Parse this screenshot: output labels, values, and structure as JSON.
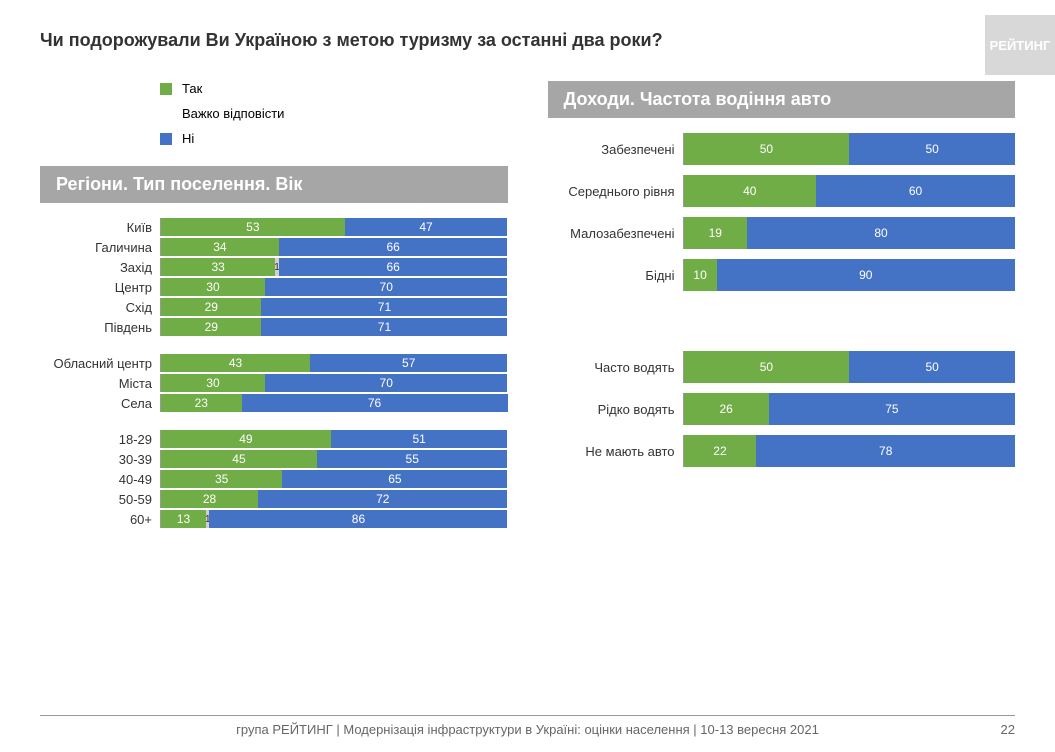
{
  "title": "Чи подорожували Ви Україною з метою туризму за останні два роки?",
  "watermark": "РЕЙТИНГ",
  "colors": {
    "yes": "#70ad47",
    "hard": "#d0d0d0",
    "no": "#4472c4"
  },
  "legend": [
    {
      "label": "Так",
      "color": "#70ad47"
    },
    {
      "label": "Важко відповісти",
      "color": null
    },
    {
      "label": "Ні",
      "color": "#4472c4"
    }
  ],
  "left": {
    "header": "Регіони. Тип поселення. Вік",
    "groups": [
      {
        "rows": [
          {
            "label": "Київ",
            "segs": [
              {
                "v": 53,
                "c": "#70ad47"
              },
              {
                "v": 47,
                "c": "#4472c4"
              }
            ]
          },
          {
            "label": "Галичина",
            "segs": [
              {
                "v": 34,
                "c": "#70ad47"
              },
              {
                "v": 66,
                "c": "#4472c4"
              }
            ]
          },
          {
            "label": "Захід",
            "segs": [
              {
                "v": 33,
                "c": "#70ad47"
              },
              {
                "v": 1,
                "c": "#d0d0d0"
              },
              {
                "v": 66,
                "c": "#4472c4"
              }
            ]
          },
          {
            "label": "Центр",
            "segs": [
              {
                "v": 30,
                "c": "#70ad47"
              },
              {
                "v": 70,
                "c": "#4472c4"
              }
            ]
          },
          {
            "label": "Схід",
            "segs": [
              {
                "v": 29,
                "c": "#70ad47"
              },
              {
                "v": 71,
                "c": "#4472c4"
              }
            ]
          },
          {
            "label": "Південь",
            "segs": [
              {
                "v": 29,
                "c": "#70ad47"
              },
              {
                "v": 71,
                "c": "#4472c4"
              }
            ]
          }
        ]
      },
      {
        "rows": [
          {
            "label": "Обласний центр",
            "segs": [
              {
                "v": 43,
                "c": "#70ad47"
              },
              {
                "v": 57,
                "c": "#4472c4"
              }
            ]
          },
          {
            "label": "Міста",
            "segs": [
              {
                "v": 30,
                "c": "#70ad47"
              },
              {
                "v": 70,
                "c": "#4472c4"
              }
            ]
          },
          {
            "label": "Села",
            "segs": [
              {
                "v": 23,
                "c": "#70ad47"
              },
              {
                "v": 76,
                "c": "#4472c4"
              }
            ]
          }
        ]
      },
      {
        "rows": [
          {
            "label": "18-29",
            "segs": [
              {
                "v": 49,
                "c": "#70ad47"
              },
              {
                "v": 51,
                "c": "#4472c4"
              }
            ]
          },
          {
            "label": "30-39",
            "segs": [
              {
                "v": 45,
                "c": "#70ad47"
              },
              {
                "v": 55,
                "c": "#4472c4"
              }
            ]
          },
          {
            "label": "40-49",
            "segs": [
              {
                "v": 35,
                "c": "#70ad47"
              },
              {
                "v": 65,
                "c": "#4472c4"
              }
            ]
          },
          {
            "label": "50-59",
            "segs": [
              {
                "v": 28,
                "c": "#70ad47"
              },
              {
                "v": 72,
                "c": "#4472c4"
              }
            ]
          },
          {
            "label": "60+",
            "segs": [
              {
                "v": 13,
                "c": "#70ad47"
              },
              {
                "v": 1,
                "c": "#d0d0d0"
              },
              {
                "v": 86,
                "c": "#4472c4"
              }
            ]
          }
        ]
      }
    ]
  },
  "right": {
    "header": "Доходи. Частота водіння авто",
    "groups": [
      {
        "rows": [
          {
            "label": "Забезпечені",
            "segs": [
              {
                "v": 50,
                "c": "#70ad47"
              },
              {
                "v": 50,
                "c": "#4472c4"
              }
            ]
          },
          {
            "label": "Середнього рівня",
            "segs": [
              {
                "v": 40,
                "c": "#70ad47"
              },
              {
                "v": 60,
                "c": "#4472c4"
              }
            ]
          },
          {
            "label": "Малозабезпечені",
            "segs": [
              {
                "v": 19,
                "c": "#70ad47"
              },
              {
                "v": 80,
                "c": "#4472c4"
              }
            ]
          },
          {
            "label": "Бідні",
            "segs": [
              {
                "v": 10,
                "c": "#70ad47"
              },
              {
                "v": 90,
                "c": "#4472c4"
              }
            ]
          }
        ]
      },
      {
        "rows": [
          {
            "label": "Часто водять",
            "segs": [
              {
                "v": 50,
                "c": "#70ad47"
              },
              {
                "v": 50,
                "c": "#4472c4"
              }
            ]
          },
          {
            "label": "Рідко водять",
            "segs": [
              {
                "v": 26,
                "c": "#70ad47"
              },
              {
                "v": 75,
                "c": "#4472c4"
              }
            ]
          },
          {
            "label": "Не мають авто",
            "segs": [
              {
                "v": 22,
                "c": "#70ad47"
              },
              {
                "v": 78,
                "c": "#4472c4"
              }
            ]
          }
        ]
      }
    ]
  },
  "footer": "група РЕЙТИНГ | Модернізація інфраструктури в Україні: оцінки населення | 10-13 вересня 2021",
  "page_num": "22"
}
